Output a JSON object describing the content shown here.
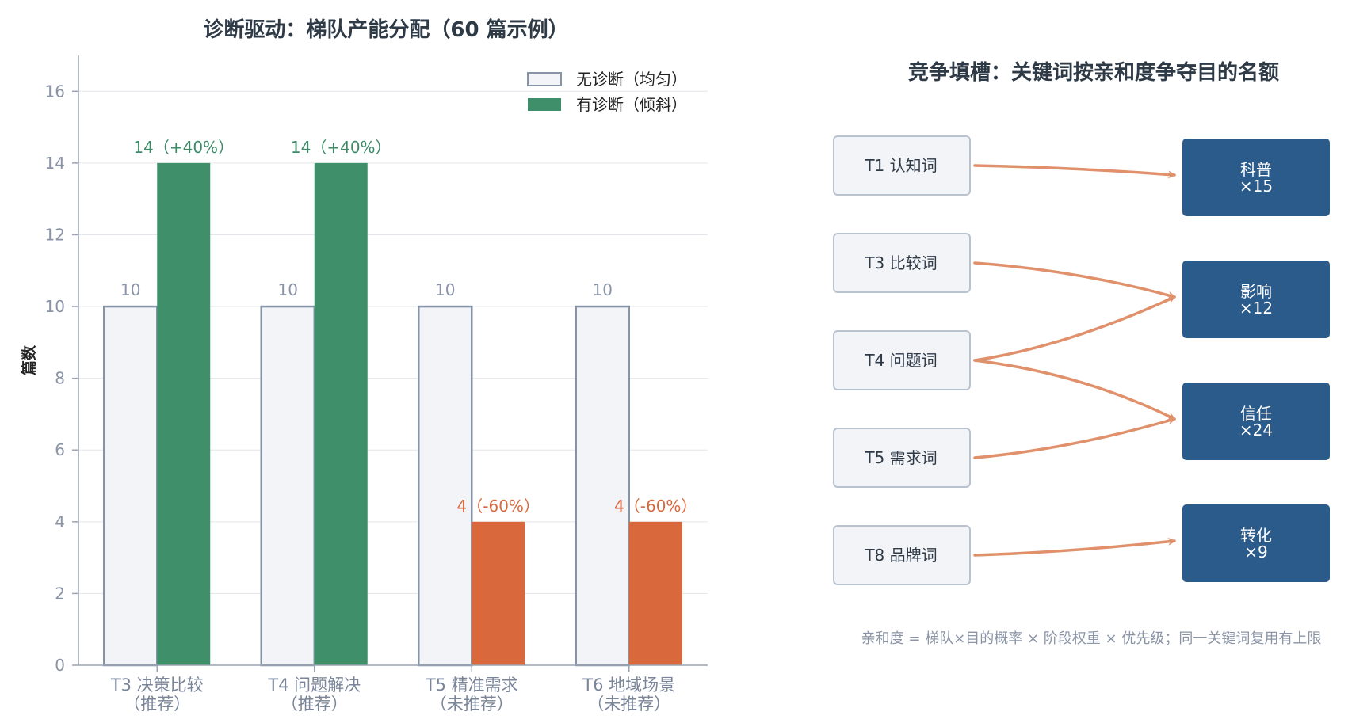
{
  "chart_data": [
    {
      "type": "bar",
      "title": "诊断驱动：梯队产能分配（60 篇示例）",
      "ylabel": "篇数",
      "xlabel": "",
      "ylim": [
        0,
        17
      ],
      "yticks": [
        0,
        2,
        4,
        6,
        8,
        10,
        12,
        14,
        16
      ],
      "grid": "y",
      "legend_placement": "top-right",
      "categories": [
        {
          "line1": "T3 决策比较",
          "line2": "（推荐）"
        },
        {
          "line1": "T4 问题解决",
          "line2": "（推荐）"
        },
        {
          "line1": "T5 精准需求",
          "line2": "（未推荐）"
        },
        {
          "line1": "T6 地域场景",
          "line2": "（未推荐）"
        }
      ],
      "series": [
        {
          "name": "无诊断（均匀）",
          "values": [
            10,
            10,
            10,
            10
          ],
          "labels": [
            "10",
            "10",
            "10",
            "10"
          ]
        },
        {
          "name": "有诊断（倾斜）",
          "values": [
            14,
            14,
            4,
            4
          ],
          "labels": [
            "14（+40%）",
            "14（+40%）",
            "4（-60%）",
            "4（-60%）"
          ]
        }
      ],
      "colors": {
        "baseline_fill": "#f2f4f8",
        "baseline_stroke": "#8794a8",
        "up": "#3f8f6a",
        "down": "#d9693d",
        "grid": "#e3e6ea",
        "axis": "#9aa3b2"
      }
    },
    {
      "type": "diagram",
      "title": "竞争填槽：关键词按亲和度争夺目的名额",
      "sources": [
        {
          "id": "T1",
          "label": "T1 认知词"
        },
        {
          "id": "T3",
          "label": "T3 比较词"
        },
        {
          "id": "T4",
          "label": "T4 问题词"
        },
        {
          "id": "T5",
          "label": "T5 需求词"
        },
        {
          "id": "T8",
          "label": "T8 品牌词"
        }
      ],
      "targets": [
        {
          "id": "kp",
          "line1": "科普",
          "line2": "×15"
        },
        {
          "id": "yx",
          "line1": "影响",
          "line2": "×12"
        },
        {
          "id": "xr",
          "line1": "信任",
          "line2": "×24"
        },
        {
          "id": "zh",
          "line1": "转化",
          "line2": "×9"
        }
      ],
      "links": [
        {
          "from": "T1",
          "to": "kp"
        },
        {
          "from": "T3",
          "to": "yx"
        },
        {
          "from": "T4",
          "to": "yx"
        },
        {
          "from": "T4",
          "to": "xr"
        },
        {
          "from": "T5",
          "to": "xr"
        },
        {
          "from": "T8",
          "to": "zh"
        }
      ],
      "footnote": "亲和度 = 梯队×目的概率 × 阶段权重 × 优先级；同一关键词复用有上限",
      "colors": {
        "source_fill": "#f2f4f8",
        "source_stroke": "#b9c2cf",
        "target_fill": "#2b5b8a",
        "arrow": "#e0906a"
      }
    }
  ]
}
